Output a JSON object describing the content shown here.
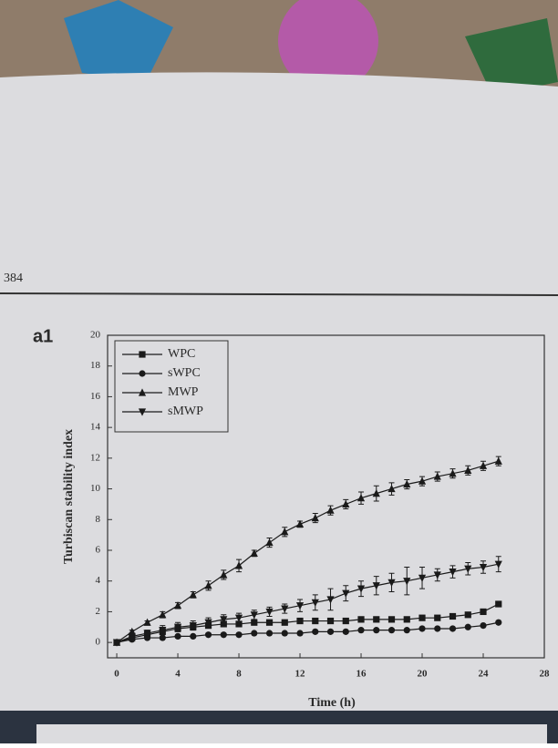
{
  "page_number": "384",
  "panel_label": "a1",
  "chart_data": {
    "type": "line",
    "x_label": "Time (h)",
    "y_label": "Turbiscan stability index",
    "x": [
      0,
      1,
      2,
      3,
      4,
      5,
      6,
      7,
      8,
      9,
      10,
      11,
      12,
      13,
      14,
      15,
      16,
      17,
      18,
      19,
      20,
      21,
      22,
      23,
      24,
      25
    ],
    "xlim": [
      -0.6,
      28
    ],
    "xticks": [
      0,
      4,
      8,
      12,
      16,
      20,
      24,
      28
    ],
    "ylim": [
      -1,
      20
    ],
    "yticks": [
      0,
      2,
      4,
      6,
      8,
      10,
      12,
      14,
      16,
      18,
      20
    ],
    "legend": "upper-left",
    "series": [
      {
        "name": "WPC",
        "color": "#1a1a1a",
        "marker": "square",
        "values": [
          0,
          0.3,
          0.5,
          0.7,
          0.9,
          1.0,
          1.1,
          1.2,
          1.2,
          1.3,
          1.3,
          1.3,
          1.4,
          1.4,
          1.4,
          1.4,
          1.5,
          1.5,
          1.5,
          1.5,
          1.6,
          1.6,
          1.7,
          1.8,
          2.0,
          2.5
        ]
      },
      {
        "name": "sWPC",
        "color": "#1a1a1a",
        "marker": "circle",
        "values": [
          0,
          0.2,
          0.3,
          0.3,
          0.4,
          0.4,
          0.5,
          0.5,
          0.5,
          0.6,
          0.6,
          0.6,
          0.6,
          0.7,
          0.7,
          0.7,
          0.8,
          0.8,
          0.8,
          0.8,
          0.9,
          0.9,
          0.9,
          1.0,
          1.1,
          1.3
        ]
      },
      {
        "name": "MWP",
        "color": "#1a1a1a",
        "marker": "triangle-up",
        "values": [
          0,
          0.7,
          1.3,
          1.8,
          2.4,
          3.1,
          3.7,
          4.4,
          5.0,
          5.8,
          6.5,
          7.2,
          7.7,
          8.1,
          8.6,
          9.0,
          9.4,
          9.7,
          10.0,
          10.3,
          10.5,
          10.8,
          11.0,
          11.2,
          11.5,
          11.8
        ],
        "errors": [
          0,
          0.1,
          0.1,
          0.2,
          0.2,
          0.2,
          0.3,
          0.3,
          0.4,
          0.2,
          0.3,
          0.3,
          0.2,
          0.3,
          0.3,
          0.3,
          0.4,
          0.5,
          0.4,
          0.3,
          0.3,
          0.3,
          0.3,
          0.3,
          0.3,
          0.3
        ]
      },
      {
        "name": "sMWP",
        "color": "#1a1a1a",
        "marker": "triangle-down",
        "values": [
          0,
          0.4,
          0.6,
          0.8,
          1.0,
          1.1,
          1.3,
          1.5,
          1.6,
          1.8,
          2.0,
          2.2,
          2.4,
          2.6,
          2.8,
          3.2,
          3.5,
          3.7,
          3.9,
          4.0,
          4.2,
          4.4,
          4.6,
          4.8,
          4.9,
          5.1
        ],
        "errors": [
          0,
          0.2,
          0.2,
          0.3,
          0.3,
          0.3,
          0.3,
          0.3,
          0.3,
          0.3,
          0.3,
          0.3,
          0.4,
          0.5,
          0.7,
          0.5,
          0.5,
          0.6,
          0.6,
          0.9,
          0.7,
          0.4,
          0.4,
          0.4,
          0.4,
          0.5
        ]
      }
    ]
  }
}
